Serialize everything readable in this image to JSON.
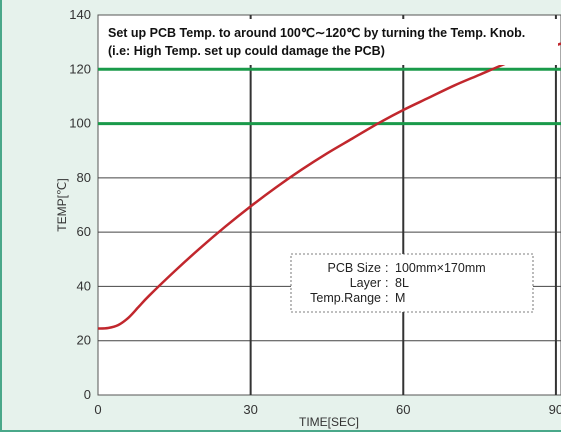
{
  "chart_data": {
    "type": "line",
    "title": "",
    "xlabel": "TIME[SEC]",
    "ylabel": "TEMP[℃]",
    "xlim": [
      0,
      91
    ],
    "ylim": [
      0,
      140
    ],
    "x_ticks": [
      "0",
      "30",
      "60",
      "90"
    ],
    "x_tick_values": [
      0,
      30,
      60,
      90
    ],
    "y_ticks": [
      "0",
      "20",
      "40",
      "60",
      "80",
      "100",
      "120",
      "140"
    ],
    "y_tick_values": [
      0,
      20,
      40,
      60,
      80,
      100,
      120,
      140
    ],
    "grid": true,
    "series": [
      {
        "color": "#c1272d",
        "x": [
          0,
          2,
          4,
          6,
          8,
          10,
          15,
          20,
          25,
          30,
          35,
          40,
          45,
          50,
          55,
          60,
          65,
          70,
          75,
          80,
          85,
          91
        ],
        "y": [
          24.5,
          24.7,
          25.8,
          28.5,
          32.5,
          36.5,
          45.5,
          54,
          62,
          69.5,
          76.5,
          83,
          89,
          94.5,
          100,
          105,
          109.5,
          114,
          118,
          122,
          125.5,
          129.5
        ]
      }
    ],
    "reference_lines": [
      {
        "y": 120,
        "color": "#1a9a4a"
      },
      {
        "y": 100,
        "color": "#1a9a4a"
      }
    ],
    "annotations": {
      "note_line1": "Set up PCB Temp. to around 100℃∼120℃ by turning the Temp. Knob.",
      "note_line2": "(i.e: High Temp. set up could damage the PCB)",
      "info_rows": [
        {
          "label": "PCB Size",
          "value": "100mm×170mm"
        },
        {
          "label": "Layer",
          "value": "8L"
        },
        {
          "label": "Temp.Range",
          "value": "M"
        }
      ]
    }
  }
}
